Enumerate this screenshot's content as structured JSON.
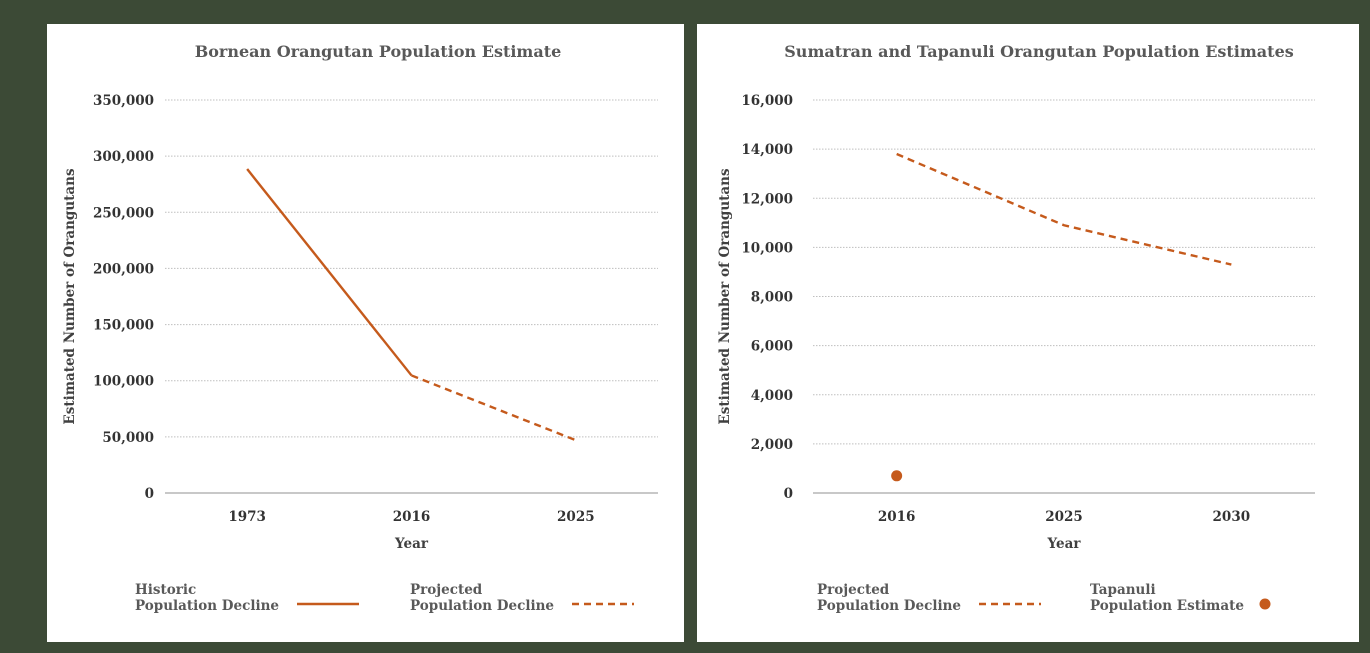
{
  "colors": {
    "accent": "#c55a1c",
    "frame": "#3c4a36",
    "panel": "#ffffff"
  },
  "chart_data": [
    {
      "type": "line",
      "title": "Bornean Orangutan Population Estimate",
      "xlabel": "Year",
      "ylabel": "Estimated Number of Orangutans",
      "categories": [
        "1973",
        "2016",
        "2025"
      ],
      "ylim": [
        0,
        350000
      ],
      "yticks": [
        0,
        50000,
        100000,
        150000,
        200000,
        250000,
        300000,
        350000
      ],
      "ytick_labels": [
        "0",
        "50,000",
        "100,000",
        "150,000",
        "200,000",
        "250,000",
        "300,000",
        "350,000"
      ],
      "grid": true,
      "legend_position": "bottom",
      "series": [
        {
          "name": "Historic Population Decline",
          "legend_lines": [
            "Historic",
            "Population Decline"
          ],
          "style": "solid",
          "values": [
            288500,
            104700,
            null
          ]
        },
        {
          "name": "Projected Population Decline",
          "legend_lines": [
            "Projected",
            "Population Decline"
          ],
          "style": "dashed",
          "values": [
            null,
            104700,
            47000
          ]
        }
      ]
    },
    {
      "type": "line",
      "title": "Sumatran and Tapanuli Orangutan Population Estimates",
      "xlabel": "Year",
      "ylabel": "Estimated Number of Orangutans",
      "categories": [
        "2016",
        "2025",
        "2030"
      ],
      "ylim": [
        0,
        16000
      ],
      "yticks": [
        0,
        2000,
        4000,
        6000,
        8000,
        10000,
        12000,
        14000,
        16000
      ],
      "ytick_labels": [
        "0",
        "2,000",
        "4,000",
        "6,000",
        "8,000",
        "10,000",
        "12,000",
        "14,000",
        "16,000"
      ],
      "grid": true,
      "legend_position": "bottom",
      "series": [
        {
          "name": "Projected Population Decline",
          "legend_lines": [
            "Projected",
            "Population Decline"
          ],
          "style": "dashed",
          "values": [
            13800,
            10900,
            9300
          ]
        },
        {
          "name": "Tapanuli Population Estimate",
          "legend_lines": [
            "Tapanuli",
            "Population Estimate"
          ],
          "style": "marker",
          "values": [
            700,
            null,
            null
          ]
        }
      ]
    }
  ]
}
